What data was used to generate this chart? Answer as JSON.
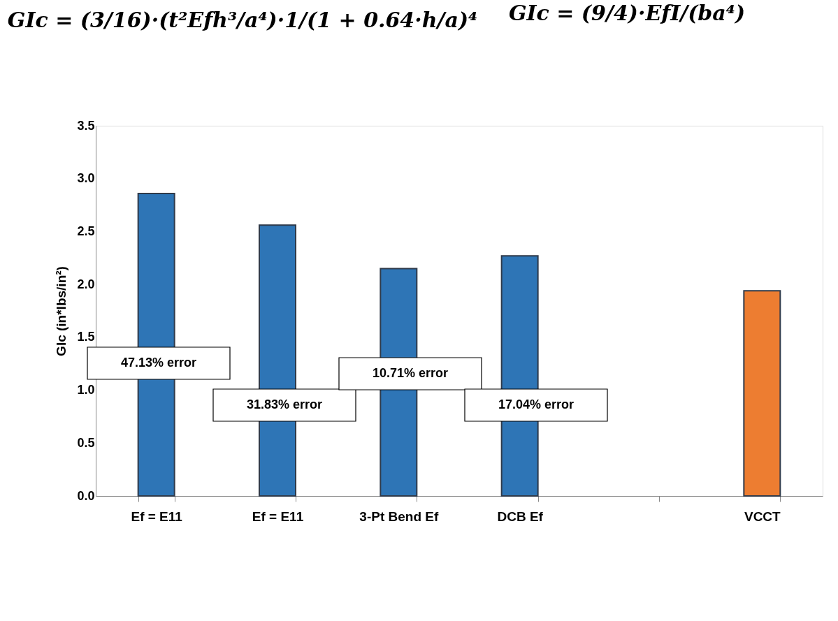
{
  "chart_data": {
    "type": "bar",
    "categories": [
      "Ef = E11",
      "Ef = E11",
      "3-Pt Bend Ef",
      "DCB Ef",
      null,
      "VCCT"
    ],
    "values": [
      2.86,
      2.56,
      2.15,
      2.27,
      null,
      1.94
    ],
    "colors": [
      "#2e75b6",
      "#2e75b6",
      "#2e75b6",
      "#2e75b6",
      "#2e75b6",
      "#ed7d31"
    ],
    "ylabel": "GIc (in*lbs/in²)",
    "ylim": [
      0,
      3.5
    ],
    "yticks": [
      {
        "value": 0,
        "label": "0.0"
      },
      {
        "value": 0.5,
        "label": "0.5"
      },
      {
        "value": 1,
        "label": "1.0"
      },
      {
        "value": 1.5,
        "label": "1.5"
      },
      {
        "value": 2,
        "label": "2.0"
      },
      {
        "value": 2.5,
        "label": "2.5"
      },
      {
        "value": 3,
        "label": "3.0"
      },
      {
        "value": 3.5,
        "label": "3.5"
      }
    ],
    "grid": false,
    "annotations": [
      "GIc = (3/16)·(t²Efh³/a⁴)·1/(1 + 0.64·h/a)⁴",
      "GIc = (9/4)·EfI/(ba⁴)",
      "47.13% error",
      "31.83% error",
      "10.71% error",
      "17.04% error"
    ]
  }
}
